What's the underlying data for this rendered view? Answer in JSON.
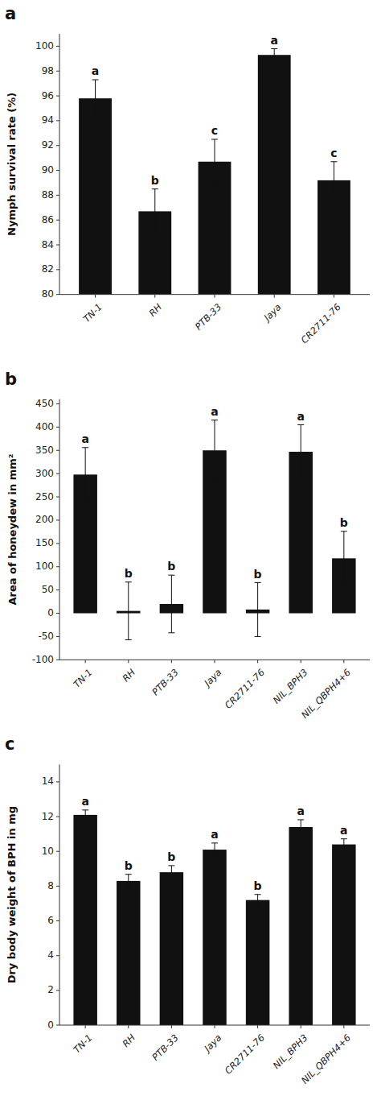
{
  "chart_data": [
    {
      "type": "bar",
      "title": "a",
      "categories": [
        "TN-1",
        "RH",
        "PTB-33",
        "Jaya",
        "CR2711-76"
      ],
      "values": [
        95.8,
        86.7,
        90.7,
        99.3,
        89.2
      ],
      "errors": [
        1.5,
        1.8,
        1.8,
        0.5,
        1.5
      ],
      "letters": [
        "a",
        "b",
        "c",
        "a",
        "c"
      ],
      "ylabel": "Nymph survival rate (%)",
      "ylim": [
        80,
        101
      ],
      "yticks": [
        80,
        82,
        84,
        86,
        88,
        90,
        92,
        94,
        96,
        98,
        100
      ],
      "color": "#111111",
      "grid": false
    },
    {
      "type": "bar",
      "title": "b",
      "categories": [
        "TN-1",
        "RH",
        "PTB-33",
        "Jaya",
        "CR2711-76",
        "NIL_BPH3",
        "NIL_QBPH4+6"
      ],
      "values": [
        298,
        5,
        20,
        350,
        8,
        347,
        118
      ],
      "errors": [
        58,
        62,
        62,
        65,
        58,
        58,
        58
      ],
      "letters": [
        "a",
        "b",
        "b",
        "a",
        "b",
        "a",
        "b"
      ],
      "ylabel": "Area of honeydew in mm²",
      "ylim": [
        -100,
        460
      ],
      "yticks": [
        -100,
        -50,
        0,
        50,
        100,
        150,
        200,
        250,
        300,
        350,
        400,
        450
      ],
      "color": "#111111",
      "grid": false
    },
    {
      "type": "bar",
      "title": "c",
      "categories": [
        "TN-1",
        "RH",
        "PTB-33",
        "Jaya",
        "CR2711-76",
        "NIL_BPH3",
        "NIL_QBPH4+6"
      ],
      "values": [
        12.1,
        8.3,
        8.8,
        10.1,
        7.2,
        11.4,
        10.4
      ],
      "errors": [
        0.28,
        0.38,
        0.38,
        0.38,
        0.32,
        0.42,
        0.32
      ],
      "letters": [
        "a",
        "b",
        "b",
        "a",
        "b",
        "a",
        "a"
      ],
      "ylabel": "Dry body weight of BPH in mg",
      "ylim": [
        0,
        15
      ],
      "yticks": [
        0,
        2,
        4,
        6,
        8,
        10,
        12,
        14
      ],
      "color": "#111111",
      "grid": false
    }
  ]
}
